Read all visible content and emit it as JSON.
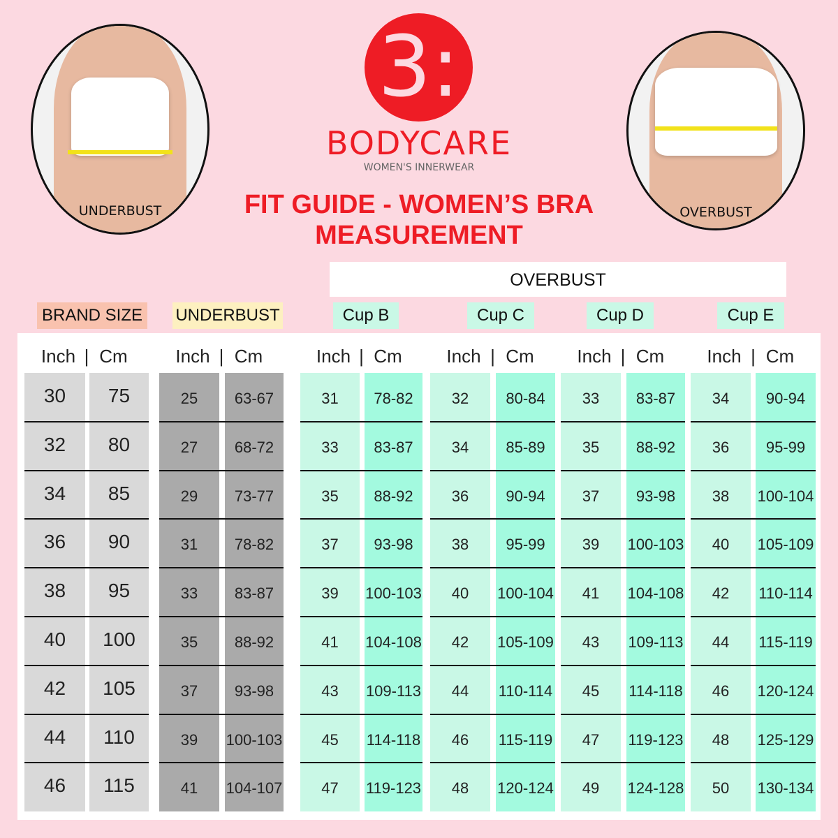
{
  "brand": {
    "logo_mark": "3:",
    "name": "BODYCARE",
    "tagline": "WOMEN'S INNERWEAR",
    "color": "#ee1c25"
  },
  "photos": {
    "left_label": "UNDERBUST",
    "right_label": "OVERBUST"
  },
  "title": {
    "line1": "FIT GUIDE - WOMEN’S BRA",
    "line2": "MEASUREMENT"
  },
  "overbust_header": "OVERBUST",
  "groups": [
    {
      "label": "BRAND SIZE",
      "color": "#f9c2ae",
      "inch_color": "#d9d9d9",
      "cm_color": "#d9d9d9"
    },
    {
      "label": "UNDERBUST",
      "color": "#fdf0c0",
      "inch_color": "#aaaaaa",
      "cm_color": "#aaaaaa"
    },
    {
      "label": "Cup B",
      "color": "#c9f8e6",
      "inch_color": "#c9f8e6",
      "cm_color": "#a3fadf"
    },
    {
      "label": "Cup C",
      "color": "#c9f8e6",
      "inch_color": "#c9f8e6",
      "cm_color": "#a3fadf"
    },
    {
      "label": "Cup D",
      "color": "#c9f8e6",
      "inch_color": "#c9f8e6",
      "cm_color": "#a3fadf"
    },
    {
      "label": "Cup E",
      "color": "#c9f8e6",
      "inch_color": "#c9f8e6",
      "cm_color": "#a3fadf"
    }
  ],
  "unit_header": {
    "inch": "Inch",
    "sep": "|",
    "cm": "Cm"
  },
  "rows": [
    [
      [
        "30",
        "75"
      ],
      [
        "25",
        "63-67"
      ],
      [
        "31",
        "78-82"
      ],
      [
        "32",
        "80-84"
      ],
      [
        "33",
        "83-87"
      ],
      [
        "34",
        "90-94"
      ]
    ],
    [
      [
        "32",
        "80"
      ],
      [
        "27",
        "68-72"
      ],
      [
        "33",
        "83-87"
      ],
      [
        "34",
        "85-89"
      ],
      [
        "35",
        "88-92"
      ],
      [
        "36",
        "95-99"
      ]
    ],
    [
      [
        "34",
        "85"
      ],
      [
        "29",
        "73-77"
      ],
      [
        "35",
        "88-92"
      ],
      [
        "36",
        "90-94"
      ],
      [
        "37",
        "93-98"
      ],
      [
        "38",
        "100-104"
      ]
    ],
    [
      [
        "36",
        "90"
      ],
      [
        "31",
        "78-82"
      ],
      [
        "37",
        "93-98"
      ],
      [
        "38",
        "95-99"
      ],
      [
        "39",
        "100-103"
      ],
      [
        "40",
        "105-109"
      ]
    ],
    [
      [
        "38",
        "95"
      ],
      [
        "33",
        "83-87"
      ],
      [
        "39",
        "100-103"
      ],
      [
        "40",
        "100-104"
      ],
      [
        "41",
        "104-108"
      ],
      [
        "42",
        "110-114"
      ]
    ],
    [
      [
        "40",
        "100"
      ],
      [
        "35",
        "88-92"
      ],
      [
        "41",
        "104-108"
      ],
      [
        "42",
        "105-109"
      ],
      [
        "43",
        "109-113"
      ],
      [
        "44",
        "115-119"
      ]
    ],
    [
      [
        "42",
        "105"
      ],
      [
        "37",
        "93-98"
      ],
      [
        "43",
        "109-113"
      ],
      [
        "44",
        "110-114"
      ],
      [
        "45",
        "114-118"
      ],
      [
        "46",
        "120-124"
      ]
    ],
    [
      [
        "44",
        "110"
      ],
      [
        "39",
        "100-103"
      ],
      [
        "45",
        "114-118"
      ],
      [
        "46",
        "115-119"
      ],
      [
        "47",
        "119-123"
      ],
      [
        "48",
        "125-129"
      ]
    ],
    [
      [
        "46",
        "115"
      ],
      [
        "41",
        "104-107"
      ],
      [
        "47",
        "119-123"
      ],
      [
        "48",
        "120-124"
      ],
      [
        "49",
        "124-128"
      ],
      [
        "50",
        "130-134"
      ]
    ]
  ]
}
